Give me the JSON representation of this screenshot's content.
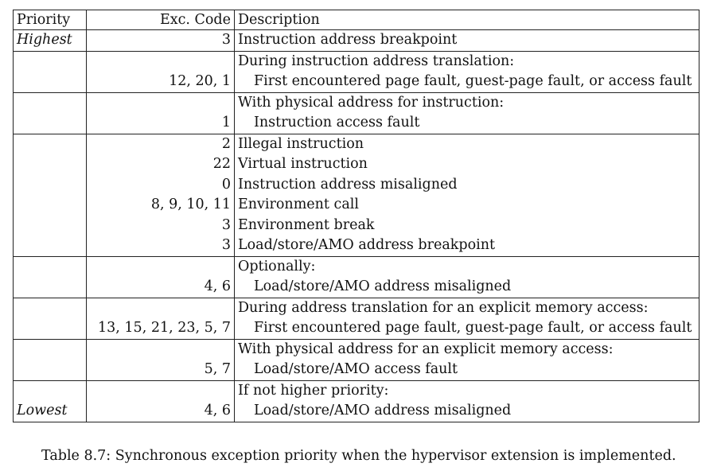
{
  "table": {
    "headers": {
      "priority": "Priority",
      "code": "Exc. Code",
      "description": "Description"
    },
    "rows": [
      {
        "priority": "Highest",
        "heading": "",
        "items": [
          {
            "code": "3",
            "desc": "Instruction address breakpoint"
          }
        ]
      },
      {
        "priority": "",
        "heading": "During instruction address translation:",
        "items": [
          {
            "code": "12, 20, 1",
            "desc": "First encountered page fault, guest-page fault, or access fault"
          }
        ]
      },
      {
        "priority": "",
        "heading": "With physical address for instruction:",
        "items": [
          {
            "code": "1",
            "desc": "Instruction access fault"
          }
        ]
      },
      {
        "priority": "",
        "heading": "",
        "items": [
          {
            "code": "2",
            "desc": "Illegal instruction"
          },
          {
            "code": "22",
            "desc": "Virtual instruction"
          },
          {
            "code": "0",
            "desc": "Instruction address misaligned"
          },
          {
            "code": "8, 9, 10, 11",
            "desc": "Environment call"
          },
          {
            "code": "3",
            "desc": "Environment break"
          },
          {
            "code": "3",
            "desc": "Load/store/AMO address breakpoint"
          }
        ]
      },
      {
        "priority": "",
        "heading": "Optionally:",
        "items": [
          {
            "code": "4, 6",
            "desc": "Load/store/AMO address misaligned"
          }
        ]
      },
      {
        "priority": "",
        "heading": "During address translation for an explicit memory access:",
        "items": [
          {
            "code": "13, 15, 21, 23, 5, 7",
            "desc": "First encountered page fault, guest-page fault, or access fault"
          }
        ]
      },
      {
        "priority": "",
        "heading": "With physical address for an explicit memory access:",
        "items": [
          {
            "code": "5, 7",
            "desc": "Load/store/AMO access fault"
          }
        ]
      },
      {
        "priority": "Lowest",
        "heading": "If not higher priority:",
        "items": [
          {
            "code": "4, 6",
            "desc": "Load/store/AMO address misaligned"
          }
        ]
      }
    ]
  },
  "caption": "Table 8.7: Synchronous exception priority when the hypervisor extension is implemented."
}
